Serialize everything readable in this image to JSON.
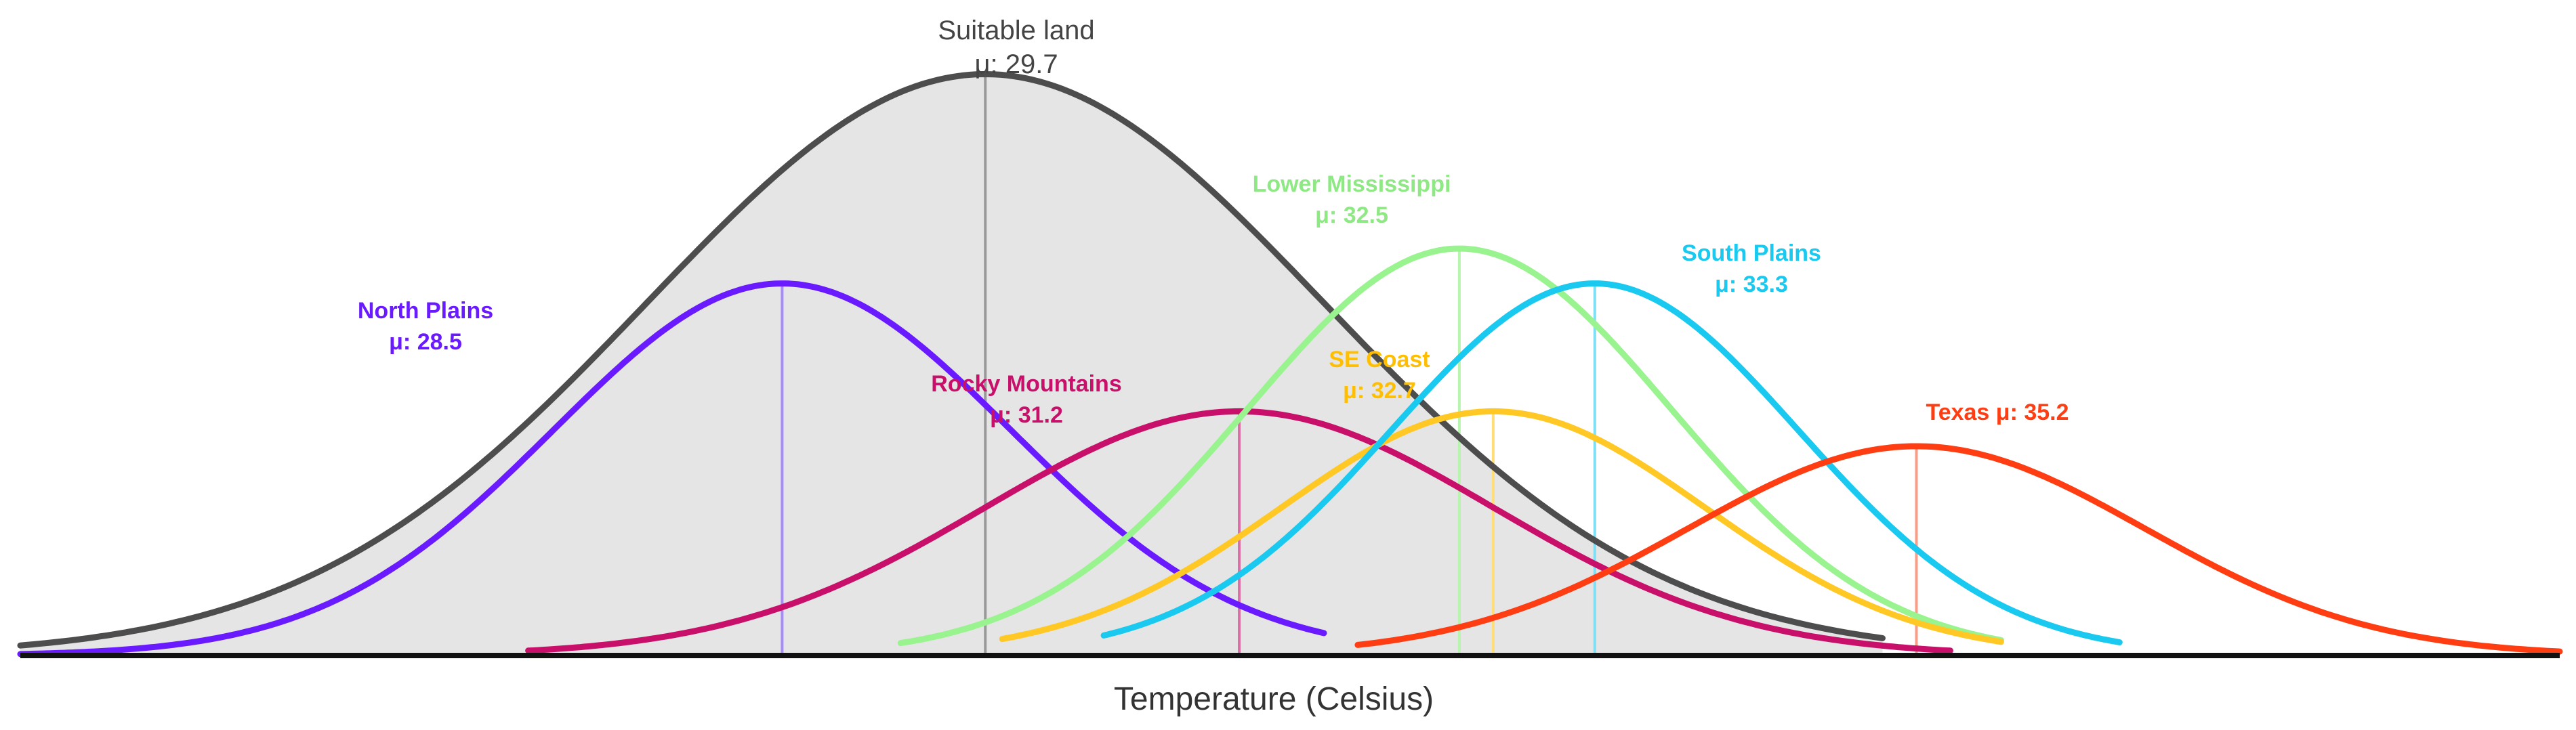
{
  "chart_data": {
    "type": "area",
    "xlabel": "Temperature (Celsius)",
    "ylabel": "",
    "title": "",
    "x_range": [
      24.0,
      39.0
    ],
    "y_range": [
      0.0,
      0.53
    ],
    "axis_color": "#111111",
    "series": [
      {
        "name": "Suitable land",
        "mean": 29.7,
        "sd": 2.0,
        "peak": 0.5,
        "x_start": 24.0,
        "x_end": 35.0,
        "color": "#4d4d4d",
        "fill": "#e5e5e5",
        "mean_line_color": "#9a9a9a",
        "label_lines": [
          "Suitable land",
          "μ: 29.7"
        ],
        "label_color": "#444444"
      },
      {
        "name": "North Plains",
        "mean": 28.5,
        "sd": 1.35,
        "peak": 0.32,
        "x_start": 24.0,
        "x_end": 31.7,
        "color": "#6a1aff",
        "fill": "none",
        "mean_line_color": "#a78bfa",
        "label_lines": [
          "North Plains",
          "μ: 28.5"
        ],
        "label_color": "#6a1aff"
      },
      {
        "name": "Rocky Mountains",
        "mean": 31.2,
        "sd": 1.5,
        "peak": 0.21,
        "x_start": 27.0,
        "x_end": 35.4,
        "color": "#c8106b",
        "fill": "none",
        "mean_line_color": "#d970a6",
        "label_lines": [
          "Rocky Mountains",
          "μ: 31.2"
        ],
        "label_color": "#c8106b"
      },
      {
        "name": "Lower Mississippi",
        "mean": 32.5,
        "sd": 1.25,
        "peak": 0.35,
        "x_start": 29.2,
        "x_end": 35.7,
        "color": "#99f38f",
        "fill": "none",
        "mean_line_color": "#b7f5ae",
        "label_lines": [
          "Lower Mississippi",
          "μ: 32.5"
        ],
        "label_color": "#8ee884"
      },
      {
        "name": "SE Coast",
        "mean": 32.7,
        "sd": 1.25,
        "peak": 0.21,
        "x_start": 29.8,
        "x_end": 35.7,
        "color": "#ffc824",
        "fill": "none",
        "mean_line_color": "#ffdd77",
        "label_lines": [
          "SE Coast",
          "μ: 32.7"
        ],
        "label_color": "#ffbf00"
      },
      {
        "name": "South Plains",
        "mean": 33.3,
        "sd": 1.2,
        "peak": 0.32,
        "x_start": 30.4,
        "x_end": 36.4,
        "color": "#19c9ef",
        "fill": "none",
        "mean_line_color": "#7fdff5",
        "label_lines": [
          "South Plains",
          "μ: 33.3"
        ],
        "label_color": "#19c9ef"
      },
      {
        "name": "Texas",
        "mean": 35.2,
        "sd": 1.35,
        "peak": 0.18,
        "x_start": 31.9,
        "x_end": 39.0,
        "color": "#ff3d13",
        "fill": "none",
        "mean_line_color": "#ff9a85",
        "label_lines": [
          "Texas μ: 35.2"
        ],
        "label_color": "#ff3d13"
      }
    ]
  }
}
